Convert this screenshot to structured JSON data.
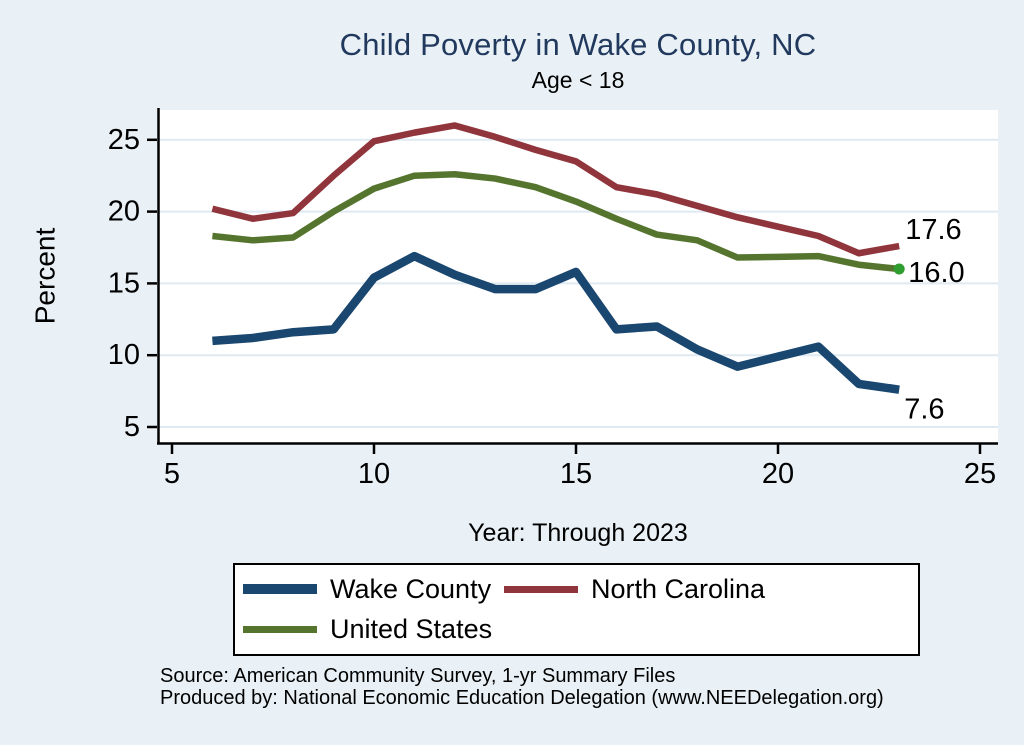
{
  "header": {
    "title": "Child Poverty in Wake County, NC",
    "subtitle": "Age < 18"
  },
  "chart_data": {
    "type": "line",
    "title": "Child Poverty in Wake County, NC",
    "subtitle": "Age < 18",
    "xlabel": "Year: Through 2023",
    "ylabel": "Percent",
    "x_ticks": [
      5,
      10,
      15,
      20,
      25
    ],
    "y_ticks": [
      5,
      10,
      15,
      20,
      25
    ],
    "xlim": [
      4.7,
      25.5
    ],
    "ylim": [
      3.8,
      27.2
    ],
    "grid": true,
    "legend_position": "bottom",
    "x": [
      6,
      7,
      8,
      9,
      10,
      11,
      12,
      13,
      14,
      15,
      16,
      17,
      18,
      19,
      20,
      21,
      22,
      23
    ],
    "series": [
      {
        "name": "Wake County",
        "color": "#1a476f",
        "line_width": 8.5,
        "values": [
          11.0,
          11.2,
          11.6,
          11.8,
          15.4,
          16.9,
          15.6,
          14.6,
          14.6,
          15.8,
          11.8,
          12.0,
          10.4,
          9.2,
          9.9,
          10.6,
          8.0,
          7.6
        ],
        "end_label": "7.6"
      },
      {
        "name": "North Carolina",
        "color": "#90353b",
        "line_width": 6.5,
        "values": [
          20.2,
          19.5,
          19.9,
          22.5,
          24.9,
          25.5,
          26.0,
          25.2,
          24.3,
          23.5,
          21.7,
          21.2,
          20.4,
          19.6,
          18.95,
          18.3,
          17.1,
          17.6
        ],
        "end_label": "17.6"
      },
      {
        "name": "United States",
        "color": "#55752f",
        "line_width": 6.5,
        "values": [
          18.3,
          18.0,
          18.2,
          20.0,
          21.6,
          22.5,
          22.6,
          22.3,
          21.7,
          20.7,
          19.5,
          18.4,
          18.0,
          16.8,
          16.85,
          16.9,
          16.3,
          16.0
        ],
        "end_label": "16.0",
        "end_marker_color": "#2f9e2f"
      }
    ]
  },
  "legend": {
    "items": [
      {
        "label": "Wake County"
      },
      {
        "label": "North Carolina"
      },
      {
        "label": "United States"
      }
    ]
  },
  "footer": {
    "line1": "Source: American Community Survey, 1-yr Summary Files",
    "line2": "Produced by: National Economic Education Delegation (www.NEEDelegation.org)"
  },
  "colors": {
    "background": "#e9f1f6",
    "plot_background": "#ffffff",
    "gridline": "#dfeaf2",
    "axis": "#000000",
    "title": "#22395e"
  }
}
